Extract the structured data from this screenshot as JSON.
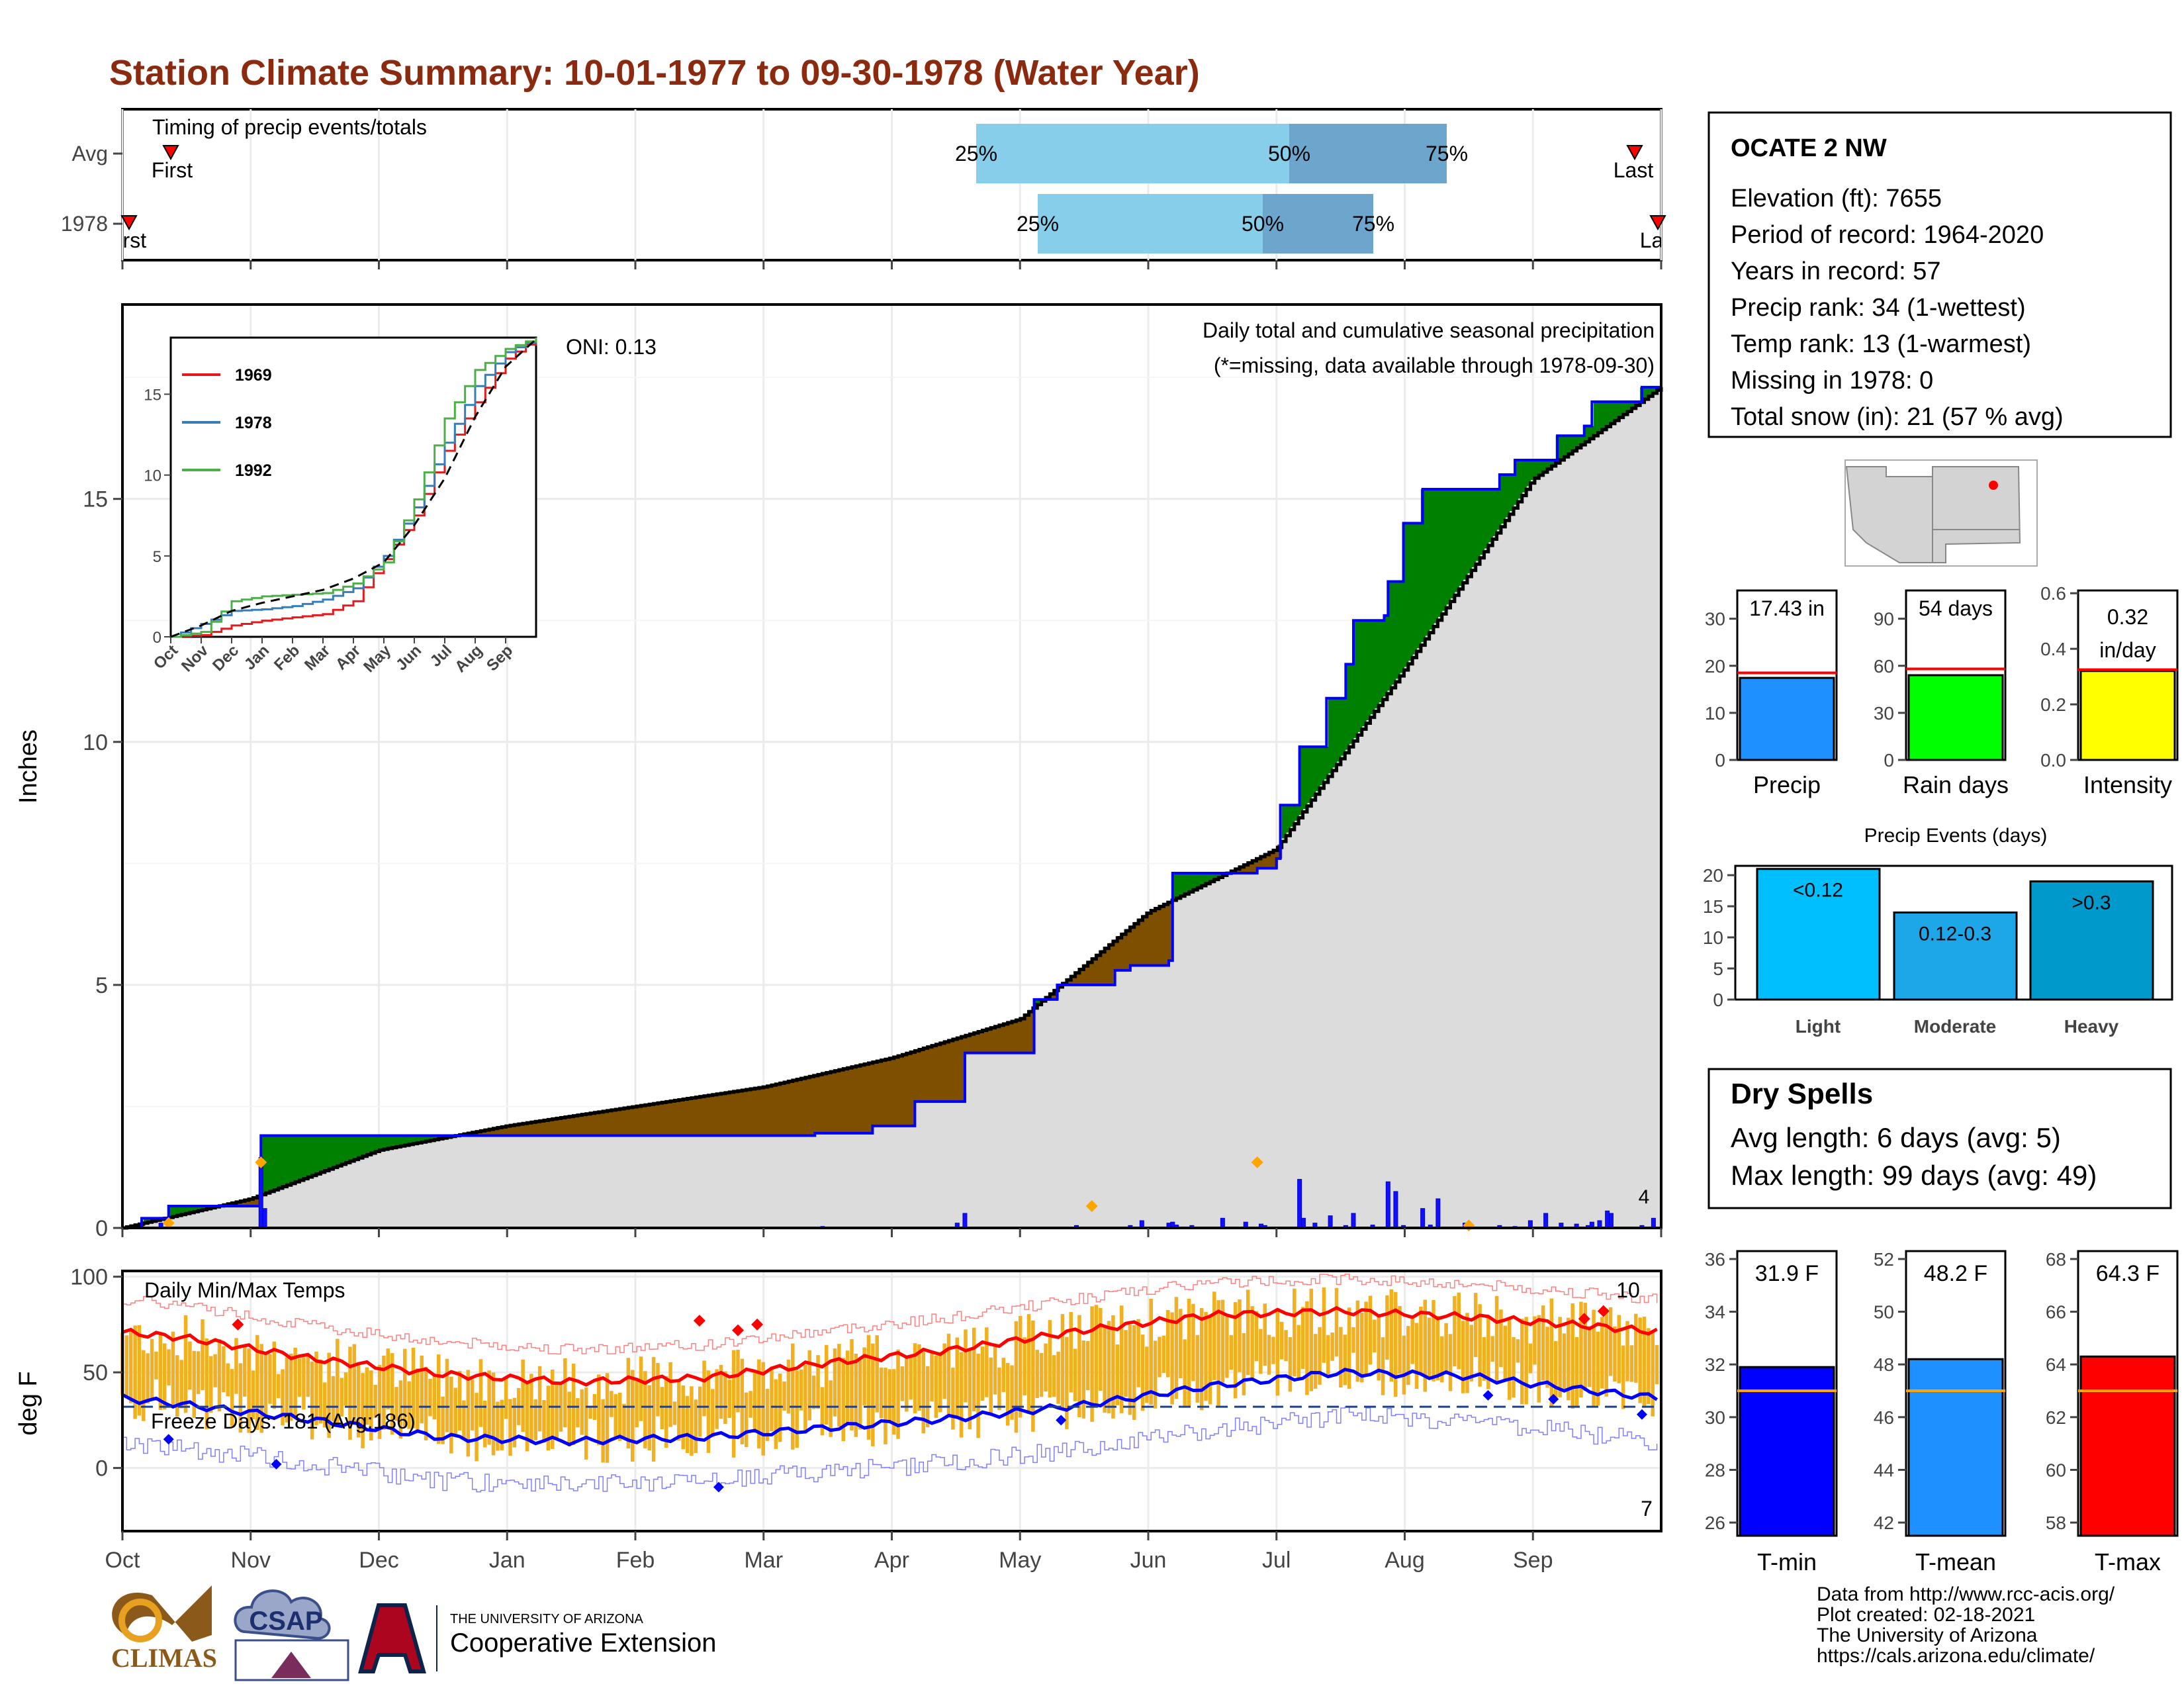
{
  "title": "Station Climate Summary: 10-01-1977 to 09-30-1978 (Water Year)",
  "colors": {
    "title": "#8b2a0e",
    "precip_fill_green": "#008000",
    "precip_fill_brown": "#7f4f00",
    "precip_line": "#0000ff",
    "tmax": "#ff0000",
    "tmin": "#0000ff",
    "range_bar": "#f0b020",
    "light": "#00bfff",
    "moderate": "#1ea7e8",
    "heavy": "#0099cc",
    "dry_spell_text": "#a52a2a"
  },
  "timing": {
    "title": "Timing of precip events/totals",
    "rows": [
      {
        "label": "Avg",
        "first": "First",
        "last": "Last",
        "p25": "25%",
        "p50": "50%",
        "p75": "75%"
      },
      {
        "label": "1978",
        "first": "First",
        "last": "Last",
        "p25": "25%",
        "p50": "50%",
        "p75": "75%"
      }
    ]
  },
  "station": {
    "name": "OCATE 2 NW",
    "lines": [
      "Elevation (ft): 7655",
      "Period of record: 1964-2020",
      "Years in record: 57",
      "Precip rank: 34 (1-wettest)",
      "Temp rank: 13 (1-warmest)",
      "Missing in 1978: 0",
      "Total snow (in): 21 (57 % avg)"
    ]
  },
  "precip_panel": {
    "ylabel": "Inches",
    "title": "Daily total and cumulative seasonal precipitation",
    "note": "(*=missing, data available through 1978-09-30)",
    "oni": "ONI: 0.13",
    "corner_count": "4",
    "yticks": [
      "0",
      "5",
      "10",
      "15"
    ]
  },
  "inset": {
    "yticks": [
      "0",
      "5",
      "10",
      "15"
    ],
    "xticks": [
      "Oct",
      "Nov",
      "Dec",
      "Jan",
      "Feb",
      "Mar",
      "Apr",
      "May",
      "Jun",
      "Jul",
      "Aug",
      "Sep"
    ],
    "legend": [
      {
        "name": "1969",
        "color": "#e41a1c"
      },
      {
        "name": "1978",
        "color": "#377eb8"
      },
      {
        "name": "1992",
        "color": "#4daf4a"
      }
    ]
  },
  "temp_panel": {
    "ylabel": "deg F",
    "title": "Daily Min/Max Temps",
    "freeze": "Freeze Days: 181 (Avg:186)",
    "count_hot": "10",
    "count_cold": "7",
    "yticks": [
      "0",
      "50",
      "100"
    ]
  },
  "months": [
    "Oct",
    "Nov",
    "Dec",
    "Jan",
    "Feb",
    "Mar",
    "Apr",
    "May",
    "Jun",
    "Jul",
    "Aug",
    "Sep"
  ],
  "summary_bars": [
    {
      "label": "Precip",
      "value_text": "17.43 in",
      "value": 17.43,
      "avg": 18.5,
      "max": 36,
      "ticks": [
        "0",
        "10",
        "20",
        "30"
      ],
      "color": "#1e90ff"
    },
    {
      "label": "Rain days",
      "value_text": "54 days",
      "value": 54,
      "avg": 58,
      "max": 108,
      "ticks": [
        "0",
        "30",
        "60",
        "90"
      ],
      "color": "#00ff00"
    },
    {
      "label": "Intensity",
      "value_text": "0.32 in/day",
      "value_line1": "0.32",
      "value_line2": "in/day",
      "value": 0.32,
      "avg": 0.325,
      "max": 0.61,
      "ticks": [
        "0.0",
        "0.2",
        "0.4",
        "0.6"
      ],
      "color": "#ffff00"
    }
  ],
  "precip_events": {
    "title": "Precip Events (days)",
    "yticks": [
      "0",
      "5",
      "10",
      "15",
      "20"
    ],
    "bars": [
      {
        "category": "Light",
        "label": "<0.12",
        "value": 21
      },
      {
        "category": "Moderate",
        "label": "0.12-0.3",
        "value": 14
      },
      {
        "category": "Heavy",
        "label": ">0.3",
        "value": 19
      }
    ]
  },
  "dry_spells": {
    "title": "Dry Spells",
    "avg": "Avg length: 6 days (avg: 5)",
    "max": "Max length: 99 days (avg: 49)"
  },
  "temp_bars": [
    {
      "label": "T-min",
      "value_text": "31.9 F",
      "value": 31.9,
      "avg": 31.0,
      "min": 25.5,
      "max": 36.3,
      "ticks": [
        "28",
        "30",
        "32",
        "34",
        "36"
      ],
      "tick_vals": [
        28,
        30,
        32,
        34,
        36
      ],
      "extra_tick": "26",
      "color": "#0000ff"
    },
    {
      "label": "T-mean",
      "value_text": "48.2 F",
      "value": 48.2,
      "avg": 47.0,
      "min": 41.5,
      "max": 52.3,
      "ticks": [
        "42",
        "44",
        "46",
        "48",
        "50",
        "52"
      ],
      "tick_vals": [
        42,
        44,
        46,
        48,
        50,
        52
      ],
      "color": "#1e90ff"
    },
    {
      "label": "T-max",
      "value_text": "64.3 F",
      "value": 64.3,
      "avg": 63.0,
      "min": 57.5,
      "max": 68.3,
      "ticks": [
        "58",
        "60",
        "62",
        "64",
        "66",
        "68"
      ],
      "tick_vals": [
        58,
        60,
        62,
        64,
        66,
        68
      ],
      "color": "#ff0000"
    }
  ],
  "credits": [
    "Data from http://www.rcc-acis.org/",
    "Plot created: 02-18-2021",
    "The University of Arizona",
    "https://cals.arizona.edu/climate/"
  ],
  "logos": {
    "climas": "CLIMAS",
    "csap": "CSAP",
    "ua_line1": "THE UNIVERSITY OF ARIZONA",
    "ua_line2": "Cooperative Extension"
  },
  "chart_data": [
    {
      "type": "area",
      "title": "Daily total and cumulative seasonal precipitation",
      "ylabel": "Inches",
      "ylim": [
        0,
        19
      ],
      "x_unit": "month",
      "series": [
        {
          "name": "1978",
          "x": [
            "Oct",
            "Nov",
            "Dec",
            "Jan",
            "Feb",
            "Mar",
            "Apr",
            "May",
            "Jun",
            "Jul",
            "Aug",
            "Sep",
            "Sep-end"
          ],
          "values": [
            0.0,
            0.45,
            1.9,
            1.9,
            1.95,
            2.1,
            2.6,
            4.6,
            7.3,
            9.9,
            15.2,
            16.8,
            17.43
          ]
        },
        {
          "x": [
            "Oct",
            "Nov",
            "Dec",
            "Jan",
            "Feb",
            "Mar",
            "Apr",
            "May",
            "Jun",
            "Jul",
            "Aug",
            "Sep",
            "Sep-end"
          ],
          "values": [
            0.0,
            0.6,
            1.6,
            2.1,
            2.5,
            2.9,
            3.5,
            4.3,
            6.5,
            7.8,
            11.5,
            15.4,
            17.3
          ]
        }
      ]
    },
    {
      "type": "line",
      "title": "Daily Min/Max Temps",
      "ylabel": "deg F",
      "ylim": [
        -33,
        103
      ],
      "x": [
        "Oct",
        "Nov",
        "Dec",
        "Jan",
        "Feb",
        "Mar",
        "Apr",
        "May",
        "Jun",
        "Jul",
        "Aug",
        "Sep"
      ],
      "series": [
        {
          "values": [
            68,
            57,
            49,
            45,
            47,
            55,
            62,
            72,
            80,
            82,
            79,
            74
          ]
        },
        {
          "values": [
            33,
            25,
            16,
            14,
            16,
            21,
            26,
            33,
            43,
            50,
            48,
            40
          ]
        }
      ]
    }
  ]
}
